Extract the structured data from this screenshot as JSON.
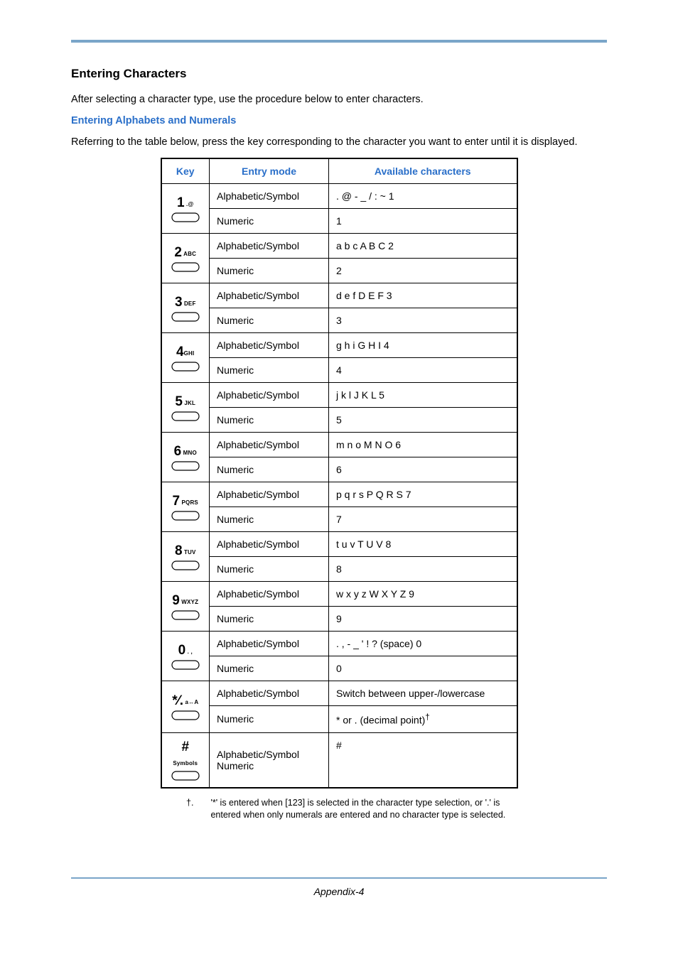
{
  "headings": {
    "title": "Entering Characters",
    "intro": "After selecting a character type, use the procedure below to enter characters.",
    "subhead": "Entering Alphabets and Numerals",
    "lead": "Referring to the table below, press the key corresponding to the character you want to enter until it is displayed."
  },
  "table": {
    "headers": {
      "key": "Key",
      "mode": "Entry mode",
      "chars": "Available characters"
    },
    "rows": [
      {
        "key_big": "1",
        "key_sm": " .@",
        "a_mode": "Alphabetic/Symbol",
        "a_chars": ". @ - _ / : ~ 1",
        "n_mode": "Numeric",
        "n_chars": "1"
      },
      {
        "key_big": "2",
        "key_sm": " ABC",
        "a_mode": "Alphabetic/Symbol",
        "a_chars": "a b c A B C 2",
        "n_mode": "Numeric",
        "n_chars": "2"
      },
      {
        "key_big": "3",
        "key_sm": " DEF",
        "a_mode": "Alphabetic/Symbol",
        "a_chars": "d e f D E F 3",
        "n_mode": "Numeric",
        "n_chars": "3"
      },
      {
        "key_big": "4",
        "key_sm": "GHI",
        "a_mode": "Alphabetic/Symbol",
        "a_chars": "g h i G H I 4",
        "n_mode": "Numeric",
        "n_chars": "4"
      },
      {
        "key_big": "5",
        "key_sm": " JKL",
        "a_mode": "Alphabetic/Symbol",
        "a_chars": "j k l J K L 5",
        "n_mode": "Numeric",
        "n_chars": "5"
      },
      {
        "key_big": "6",
        "key_sm": " MNO",
        "a_mode": "Alphabetic/Symbol",
        "a_chars": "m n o M N O 6",
        "n_mode": "Numeric",
        "n_chars": "6"
      },
      {
        "key_big": "7",
        "key_sm": " PQRS",
        "a_mode": "Alphabetic/Symbol",
        "a_chars": "p q r s P Q R S 7",
        "n_mode": "Numeric",
        "n_chars": "7"
      },
      {
        "key_big": "8",
        "key_sm": " TUV",
        "a_mode": "Alphabetic/Symbol",
        "a_chars": "t u v T U V 8",
        "n_mode": "Numeric",
        "n_chars": "8"
      },
      {
        "key_big": "9",
        "key_sm": " WXYZ",
        "a_mode": "Alphabetic/Symbol",
        "a_chars": "w x y z W X Y Z 9",
        "n_mode": "Numeric",
        "n_chars": "9"
      },
      {
        "key_big": "0",
        "key_sm": " . ,",
        "a_mode": "Alphabetic/Symbol",
        "a_chars": ". , - _ ' ! ? (space) 0",
        "n_mode": "Numeric",
        "n_chars": "0"
      },
      {
        "key_big": "*⁄.",
        "key_sm": " a↔A",
        "a_mode": "Alphabetic/Symbol",
        "a_chars": "Switch between upper-/lowercase",
        "n_mode": "Numeric",
        "n_chars": "* or . (decimal point)†"
      },
      {
        "key_big": "#",
        "key_sm": " Symbols",
        "a_mode": "Alphabetic/Symbol\nNumeric",
        "a_chars": "#"
      }
    ]
  },
  "footnote": {
    "dag": "†.",
    "text": "'*' is entered when [123] is selected in the character type selection, or '.' is entered when only numerals are entered and no character type is selected."
  },
  "footer": "Appendix-4"
}
